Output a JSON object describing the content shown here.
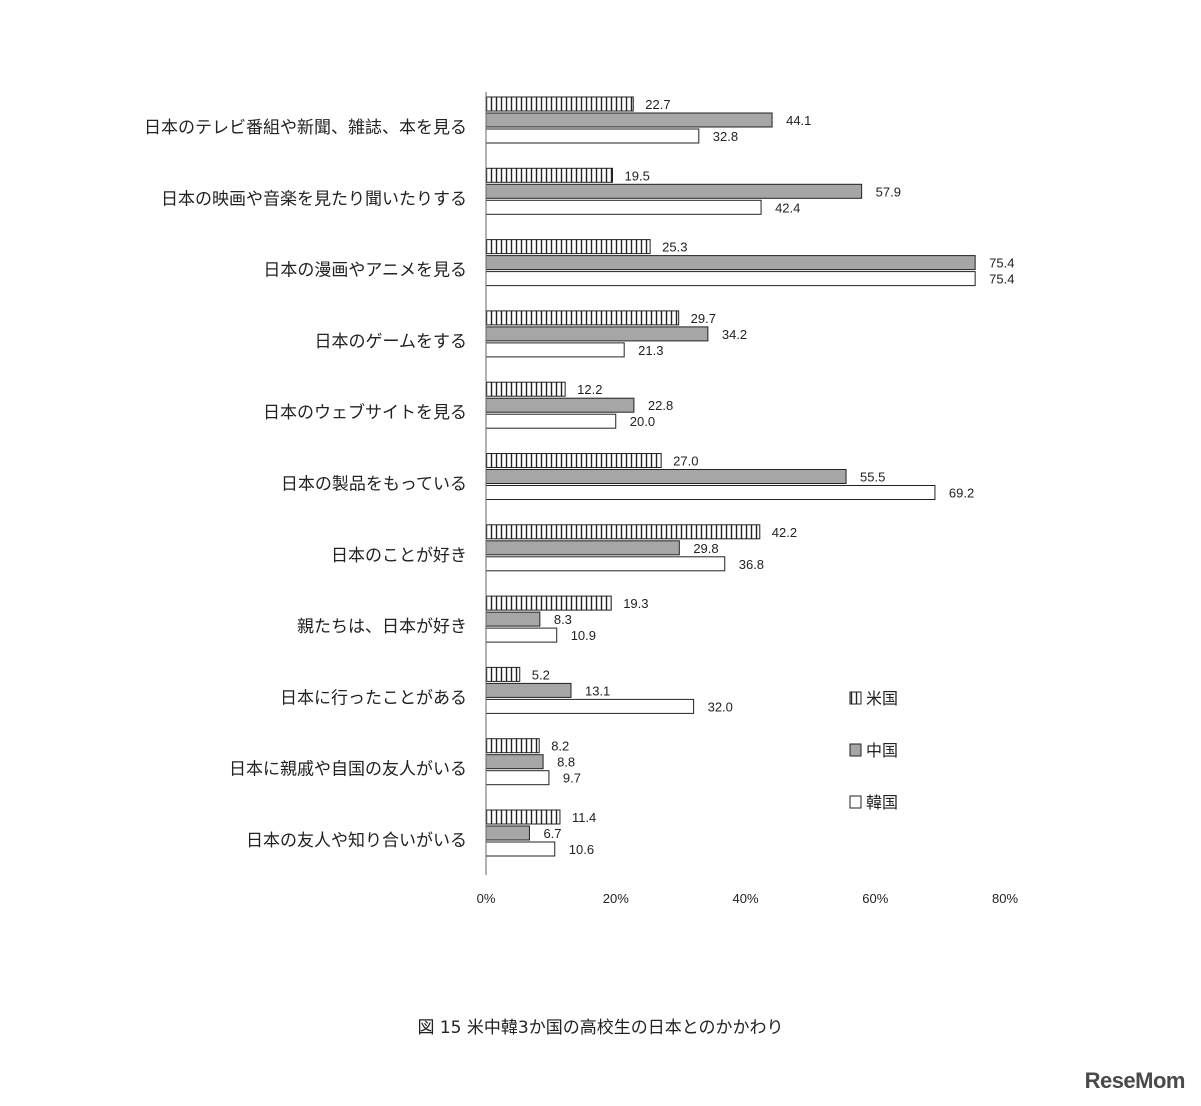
{
  "chart_data": {
    "type": "bar",
    "orientation": "horizontal",
    "title": "図 15 米中韓3か国の高校生の日本とのかかわり",
    "categories": [
      "日本のテレビ番組や新聞、雑誌、本を見る",
      "日本の映画や音楽を見たり聞いたりする",
      "日本の漫画やアニメを見る",
      "日本のゲームをする",
      "日本のウェブサイトを見る",
      "日本の製品をもっている",
      "日本のことが好き",
      "親たちは、日本が好き",
      "日本に行ったことがある",
      "日本に親戚や自国の友人がいる",
      "日本の友人や知り合いがいる"
    ],
    "series": [
      {
        "name": "米国",
        "pattern": "vertical-hatch",
        "color": "#ffffff",
        "values": [
          22.7,
          19.5,
          25.3,
          29.7,
          12.2,
          27.0,
          42.2,
          19.3,
          5.2,
          8.2,
          11.4
        ]
      },
      {
        "name": "中国",
        "pattern": "solid",
        "color": "#a6a6a6",
        "values": [
          44.1,
          57.9,
          75.4,
          34.2,
          22.8,
          55.5,
          29.8,
          8.3,
          13.1,
          8.8,
          6.7
        ]
      },
      {
        "name": "韓国",
        "pattern": "solid",
        "color": "#ffffff",
        "values": [
          32.8,
          42.4,
          75.4,
          21.3,
          20.0,
          69.2,
          36.8,
          10.9,
          32.0,
          9.7,
          10.6
        ]
      }
    ],
    "xlim": [
      0,
      80
    ],
    "xticks": [
      "0%",
      "20%",
      "40%",
      "60%",
      "80%"
    ],
    "legend_position": "right",
    "grid": false
  },
  "caption": "図 15 米中韓3か国の高校生の日本とのかかわり",
  "watermark": "ReseMom",
  "colors": {
    "hatch": "#222222",
    "china": "#a6a6a6",
    "bar_stroke": "#222222",
    "axis": "#666666"
  }
}
